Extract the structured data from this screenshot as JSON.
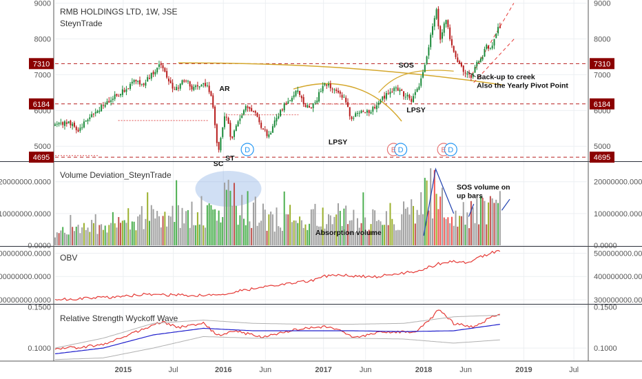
{
  "chart_data": [
    {
      "type": "candlestick",
      "title": "RMB HOLDINGS LTD, 1W, JSE",
      "subtitle": "SteynTrade",
      "ylim": [
        4600,
        9050
      ],
      "yticks": [
        5000,
        6000,
        7000,
        8000,
        9000
      ],
      "ytick_labels": [
        "5000",
        "6000",
        "7000",
        "8000",
        "9000"
      ],
      "x_range": [
        2014.32,
        2019.63
      ],
      "x_ticks": [
        {
          "x": 2015.0,
          "label": "2015"
        },
        {
          "x": 2015.5,
          "label": "Jul"
        },
        {
          "x": 2016.0,
          "label": "2016"
        },
        {
          "x": 2016.42,
          "label": "Jun"
        },
        {
          "x": 2017.0,
          "label": "2017"
        },
        {
          "x": 2017.42,
          "label": "Jun"
        },
        {
          "x": 2018.0,
          "label": "2018"
        },
        {
          "x": 2018.42,
          "label": "Jun"
        },
        {
          "x": 2019.0,
          "label": "2019"
        },
        {
          "x": 2019.5,
          "label": "Jul"
        }
      ],
      "price_path": [
        [
          2014.32,
          5550
        ],
        [
          2014.45,
          5700
        ],
        [
          2014.55,
          5450
        ],
        [
          2014.7,
          5900
        ],
        [
          2014.85,
          6250
        ],
        [
          2015.0,
          6550
        ],
        [
          2015.1,
          6800
        ],
        [
          2015.2,
          6750
        ],
        [
          2015.3,
          7050
        ],
        [
          2015.38,
          7300
        ],
        [
          2015.45,
          6800
        ],
        [
          2015.52,
          6550
        ],
        [
          2015.6,
          6900
        ],
        [
          2015.7,
          6600
        ],
        [
          2015.8,
          6800
        ],
        [
          2015.88,
          6450
        ],
        [
          2015.95,
          4800
        ],
        [
          2016.02,
          6000
        ],
        [
          2016.08,
          5200
        ],
        [
          2016.15,
          5700
        ],
        [
          2016.22,
          6100
        ],
        [
          2016.3,
          6000
        ],
        [
          2016.38,
          5500
        ],
        [
          2016.45,
          5300
        ],
        [
          2016.55,
          5900
        ],
        [
          2016.65,
          6300
        ],
        [
          2016.75,
          6550
        ],
        [
          2016.82,
          6100
        ],
        [
          2016.9,
          6150
        ],
        [
          2017.0,
          6700
        ],
        [
          2017.08,
          6650
        ],
        [
          2017.15,
          6500
        ],
        [
          2017.22,
          6300
        ],
        [
          2017.28,
          5700
        ],
        [
          2017.35,
          6000
        ],
        [
          2017.42,
          5950
        ],
        [
          2017.5,
          6050
        ],
        [
          2017.58,
          6300
        ],
        [
          2017.65,
          6500
        ],
        [
          2017.72,
          6600
        ],
        [
          2017.8,
          6450
        ],
        [
          2017.88,
          6300
        ],
        [
          2017.95,
          6700
        ],
        [
          2018.02,
          7300
        ],
        [
          2018.08,
          8300
        ],
        [
          2018.13,
          8800
        ],
        [
          2018.17,
          7900
        ],
        [
          2018.22,
          8600
        ],
        [
          2018.28,
          7800
        ],
        [
          2018.35,
          7300
        ],
        [
          2018.42,
          7050
        ],
        [
          2018.47,
          6950
        ],
        [
          2018.52,
          7250
        ],
        [
          2018.58,
          7500
        ],
        [
          2018.63,
          7800
        ],
        [
          2018.68,
          7700
        ],
        [
          2018.73,
          8250
        ],
        [
          2018.77,
          8400
        ]
      ],
      "levels": [
        {
          "value": 7310,
          "label": "7310"
        },
        {
          "value": 6184,
          "label": "6184"
        },
        {
          "value": 4695,
          "label": "4695"
        }
      ],
      "annotations": [
        {
          "text": "AR",
          "x": 2015.96,
          "y": 6550
        },
        {
          "text": "SC",
          "x": 2015.9,
          "y": 4450
        },
        {
          "text": "ST",
          "x": 2016.02,
          "y": 4600
        },
        {
          "text": "LPSY",
          "x": 2017.05,
          "y": 5050
        },
        {
          "text": "SOS",
          "x": 2017.75,
          "y": 7200
        },
        {
          "text": "LPSY",
          "x": 2017.83,
          "y": 5950
        },
        {
          "text": "Back-up to creek",
          "x": 2018.53,
          "y": 6870
        },
        {
          "text": "Also the Yearly Pivot Point",
          "x": 2018.53,
          "y": 6630
        }
      ],
      "events": [
        {
          "label": "D",
          "x": 2016.24,
          "color": "#2196f3"
        },
        {
          "label": "E",
          "x": 2017.7,
          "color": "#e57373"
        },
        {
          "label": "D",
          "x": 2017.77,
          "color": "#2196f3"
        },
        {
          "label": "E",
          "x": 2018.2,
          "color": "#e57373"
        },
        {
          "label": "D",
          "x": 2018.27,
          "color": "#2196f3"
        }
      ]
    },
    {
      "type": "bar",
      "title": "Volume Deviation_SteynTrade",
      "ylim": [
        0,
        26000000
      ],
      "yticks": [
        0,
        10000000,
        20000000
      ],
      "ytick_labels": [
        "0.0000",
        "10000000.0000",
        "20000000.0000"
      ],
      "volume_profile": [
        [
          2014.32,
          3500000
        ],
        [
          2014.7,
          7000000
        ],
        [
          2015.0,
          9000000
        ],
        [
          2015.5,
          9500000
        ],
        [
          2015.9,
          12000000
        ],
        [
          2016.0,
          16000000
        ],
        [
          2016.2,
          13000000
        ],
        [
          2016.5,
          9000000
        ],
        [
          2017.0,
          10000000
        ],
        [
          2017.5,
          8500000
        ],
        [
          2017.9,
          11000000
        ],
        [
          2018.0,
          16000000
        ],
        [
          2018.15,
          20000000
        ],
        [
          2018.3,
          12000000
        ],
        [
          2018.5,
          10500000
        ],
        [
          2018.77,
          13000000
        ]
      ],
      "annotations": [
        {
          "text": "SOS volume on",
          "x": 2018.33,
          "y": 17500000
        },
        {
          "text": "up bars",
          "x": 2018.33,
          "y": 14800000
        },
        {
          "text": "Absorption volume",
          "x": 2016.92,
          "y": 3200000
        }
      ]
    },
    {
      "type": "line",
      "title": "OBV",
      "ylim": [
        285000000,
        525000000
      ],
      "yticks": [
        300000000,
        400000000,
        500000000
      ],
      "ytick_labels": [
        "300000000.0000",
        "400000000.0000",
        "500000000.0000"
      ],
      "series": [
        {
          "color": "#e53935",
          "points": [
            [
              2014.32,
              300000000
            ],
            [
              2014.6,
              305000000
            ],
            [
              2014.9,
              312000000
            ],
            [
              2015.2,
              322000000
            ],
            [
              2015.5,
              320000000
            ],
            [
              2015.8,
              318000000
            ],
            [
              2016.0,
              325000000
            ],
            [
              2016.3,
              348000000
            ],
            [
              2016.6,
              365000000
            ],
            [
              2016.9,
              385000000
            ],
            [
              2017.0,
              400000000
            ],
            [
              2017.2,
              405000000
            ],
            [
              2017.5,
              398000000
            ],
            [
              2017.7,
              410000000
            ],
            [
              2017.9,
              420000000
            ],
            [
              2018.0,
              432000000
            ],
            [
              2018.15,
              455000000
            ],
            [
              2018.3,
              465000000
            ],
            [
              2018.45,
              460000000
            ],
            [
              2018.6,
              490000000
            ],
            [
              2018.7,
              505000000
            ],
            [
              2018.77,
              512000000
            ]
          ]
        }
      ]
    },
    {
      "type": "line",
      "title": "Relative Strength Wyckoff Wave",
      "ylim": [
        0.085,
        0.152
      ],
      "yticks": [
        0.1,
        0.15
      ],
      "ytick_labels": [
        "0.1000",
        "0.1500"
      ],
      "series": [
        {
          "color": "#e53935",
          "points": [
            [
              2014.32,
              0.1
            ],
            [
              2014.6,
              0.101
            ],
            [
              2014.85,
              0.106
            ],
            [
              2015.1,
              0.118
            ],
            [
              2015.38,
              0.132
            ],
            [
              2015.55,
              0.125
            ],
            [
              2015.8,
              0.13
            ],
            [
              2015.95,
              0.115
            ],
            [
              2016.1,
              0.121
            ],
            [
              2016.4,
              0.113
            ],
            [
              2016.7,
              0.122
            ],
            [
              2017.0,
              0.126
            ],
            [
              2017.2,
              0.12
            ],
            [
              2017.3,
              0.112
            ],
            [
              2017.6,
              0.12
            ],
            [
              2017.9,
              0.119
            ],
            [
              2018.05,
              0.132
            ],
            [
              2018.15,
              0.148
            ],
            [
              2018.3,
              0.13
            ],
            [
              2018.5,
              0.125
            ],
            [
              2018.65,
              0.136
            ],
            [
              2018.77,
              0.143
            ]
          ]
        },
        {
          "color": "#1e1ecc",
          "points": [
            [
              2014.32,
              0.093
            ],
            [
              2014.8,
              0.1
            ],
            [
              2015.3,
              0.116
            ],
            [
              2015.8,
              0.124
            ],
            [
              2016.3,
              0.121
            ],
            [
              2016.8,
              0.121
            ],
            [
              2017.3,
              0.121
            ],
            [
              2017.8,
              0.12
            ],
            [
              2018.3,
              0.121
            ],
            [
              2018.77,
              0.129
            ]
          ]
        },
        {
          "color": "#b0b0b0",
          "points": [
            [
              2014.32,
              0.1
            ],
            [
              2014.8,
              0.112
            ],
            [
              2015.3,
              0.13
            ],
            [
              2015.8,
              0.134
            ],
            [
              2016.3,
              0.13
            ],
            [
              2016.8,
              0.129
            ],
            [
              2017.3,
              0.129
            ],
            [
              2017.8,
              0.13
            ],
            [
              2018.3,
              0.138
            ],
            [
              2018.77,
              0.14
            ]
          ]
        },
        {
          "color": "#b0b0b0",
          "points": [
            [
              2014.32,
              0.086
            ],
            [
              2014.8,
              0.088
            ],
            [
              2015.3,
              0.1
            ],
            [
              2015.8,
              0.114
            ],
            [
              2016.3,
              0.112
            ],
            [
              2016.8,
              0.112
            ],
            [
              2017.3,
              0.112
            ],
            [
              2017.8,
              0.111
            ],
            [
              2018.3,
              0.106
            ],
            [
              2018.77,
              0.11
            ]
          ]
        }
      ]
    }
  ]
}
